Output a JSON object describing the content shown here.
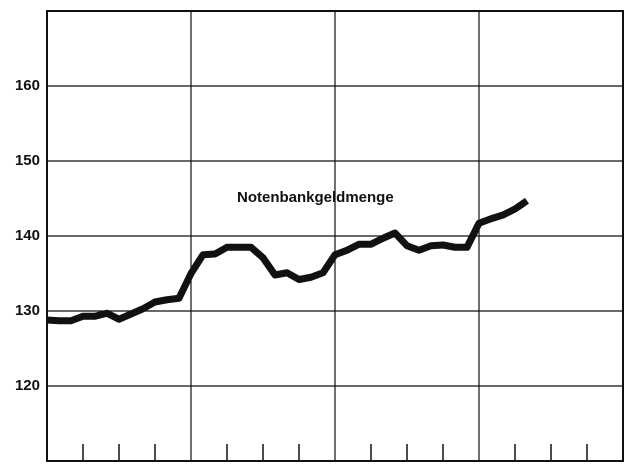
{
  "chart_data": {
    "type": "line",
    "annotation": "Notenbankgeldmenge",
    "x": [
      0,
      1,
      2,
      3,
      4,
      5,
      6,
      7,
      8,
      9,
      10,
      11,
      12,
      13,
      14,
      15,
      16,
      17,
      18,
      19,
      20,
      21,
      22,
      23,
      24,
      25,
      26,
      27,
      28,
      29,
      30,
      31,
      32,
      33,
      34,
      35,
      36,
      37,
      38,
      39,
      40
    ],
    "series": [
      {
        "name": "Notenbankgeldmenge",
        "color": "#111111",
        "values": [
          128.8,
          128.7,
          128.7,
          129.3,
          129.3,
          129.7,
          128.9,
          129.6,
          130.3,
          131.2,
          131.5,
          131.7,
          135,
          137.5,
          137.6,
          138.5,
          138.5,
          138.5,
          137.1,
          134.8,
          135.1,
          134.2,
          134.5,
          135.1,
          137.5,
          138.1,
          138.9,
          138.9,
          139.7,
          140.4,
          138.7,
          138.1,
          138.7,
          138.8,
          138.5,
          138.5,
          141.7,
          142.3,
          142.8,
          143.6,
          144.7
        ]
      }
    ],
    "xlim": [
      0,
      48
    ],
    "xticks": [
      0,
      12,
      24,
      36,
      48
    ],
    "xminor": [
      3,
      6,
      9,
      15,
      18,
      21,
      27,
      30,
      33,
      39,
      42,
      45
    ],
    "ylim": [
      110,
      170
    ],
    "yticks": [
      120,
      130,
      140,
      150,
      160
    ],
    "grid": true
  }
}
